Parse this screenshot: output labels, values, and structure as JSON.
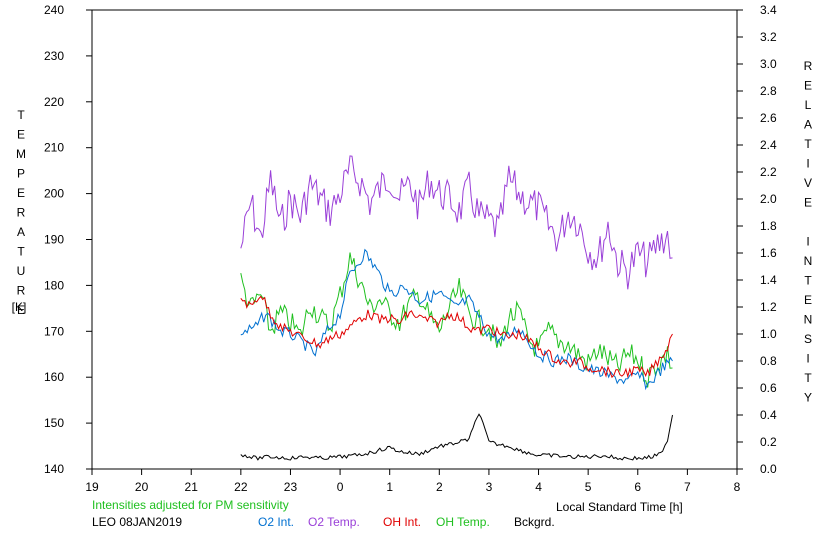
{
  "chart_data": {
    "type": "line",
    "xlabel": "Local Standard Time [h]",
    "ylabel_left": "TEMPERATURE",
    "ylabel_left_unit": "[K]",
    "ylabel_right": "RELATIVE INTENSITY",
    "x_ticks": [
      "19",
      "20",
      "21",
      "22",
      "23",
      "0",
      "1",
      "2",
      "3",
      "4",
      "5",
      "6",
      "7",
      "8"
    ],
    "y_left_ticks": [
      "140",
      "150",
      "160",
      "170",
      "180",
      "190",
      "200",
      "210",
      "220",
      "230",
      "240"
    ],
    "y_right_ticks": [
      "0.0",
      "0.2",
      "0.4",
      "0.6",
      "0.8",
      "1.0",
      "1.2",
      "1.4",
      "1.6",
      "1.8",
      "2.0",
      "2.2",
      "2.4",
      "2.6",
      "2.8",
      "3.0",
      "3.2",
      "3.4"
    ],
    "xlim": [
      19,
      32
    ],
    "ylim_left": [
      140,
      240
    ],
    "ylim_right": [
      0.0,
      3.4
    ],
    "note": "Intensities adjusted for PM sensitivity",
    "station": "LEO 08JAN2019",
    "legend": [
      "O2 Int.",
      "O2 Temp.",
      "OH Int.",
      "OH Temp.",
      "Bckgrd."
    ],
    "series": [
      {
        "name": "O2 Int.",
        "axis": "right",
        "color": "#0070d0",
        "x": [
          22.0,
          22.3,
          22.5,
          22.8,
          23.0,
          23.3,
          23.5,
          23.7,
          24.0,
          24.2,
          24.5,
          24.7,
          25.0,
          25.3,
          25.6,
          26.0,
          26.3,
          26.6,
          27.0,
          27.3,
          27.6,
          28.0,
          28.3,
          28.6,
          28.9,
          29.2,
          29.5,
          29.8,
          30.0,
          30.2,
          30.5,
          30.7
        ],
        "y": [
          1.0,
          1.05,
          1.15,
          1.02,
          1.0,
          0.92,
          0.85,
          1.0,
          1.15,
          1.45,
          1.6,
          1.5,
          1.3,
          1.35,
          1.25,
          1.3,
          1.2,
          1.25,
          1.0,
          0.95,
          1.05,
          0.85,
          0.8,
          0.82,
          0.75,
          0.72,
          0.68,
          0.65,
          0.7,
          0.62,
          0.75,
          0.8
        ]
      },
      {
        "name": "O2 Temp.",
        "axis": "left",
        "color": "#9a40d8",
        "x": [
          22.0,
          22.2,
          22.4,
          22.6,
          22.8,
          23.0,
          23.2,
          23.4,
          23.6,
          23.8,
          24.0,
          24.2,
          24.4,
          24.6,
          24.8,
          25.0,
          25.2,
          25.4,
          25.6,
          25.8,
          26.0,
          26.2,
          26.4,
          26.6,
          26.8,
          27.0,
          27.2,
          27.4,
          27.6,
          27.8,
          28.0,
          28.2,
          28.4,
          28.6,
          28.8,
          29.0,
          29.2,
          29.4,
          29.6,
          29.8,
          30.0,
          30.2,
          30.4,
          30.6,
          30.7
        ],
        "y": [
          188,
          198,
          190,
          203,
          193,
          199,
          195,
          202,
          199,
          196,
          200,
          205,
          203,
          198,
          201,
          204,
          199,
          202,
          197,
          203,
          200,
          199,
          196,
          201,
          195,
          194,
          192,
          203,
          200,
          198,
          197,
          193,
          190,
          196,
          194,
          188,
          186,
          193,
          185,
          183,
          187,
          185,
          189,
          191,
          186
        ]
      },
      {
        "name": "OH Int.",
        "axis": "right",
        "color": "#e00000",
        "x": [
          22.0,
          22.2,
          22.4,
          22.6,
          22.8,
          23.0,
          23.2,
          23.4,
          23.6,
          23.8,
          24.0,
          24.2,
          24.4,
          24.6,
          24.8,
          25.0,
          25.2,
          25.4,
          25.6,
          25.8,
          26.0,
          26.2,
          26.4,
          26.6,
          26.8,
          27.0,
          27.2,
          27.4,
          27.6,
          27.8,
          28.0,
          28.2,
          28.4,
          28.6,
          28.8,
          29.0,
          29.2,
          29.4,
          29.6,
          29.8,
          30.0,
          30.2,
          30.4,
          30.6,
          30.7
        ],
        "y": [
          1.27,
          1.2,
          1.3,
          1.15,
          1.05,
          1.02,
          0.98,
          0.95,
          0.92,
          0.97,
          1.0,
          1.05,
          1.12,
          1.15,
          1.1,
          1.12,
          1.08,
          1.16,
          1.12,
          1.1,
          1.08,
          1.15,
          1.12,
          1.05,
          1.02,
          1.05,
          1.0,
          0.98,
          1.0,
          0.95,
          0.9,
          0.85,
          0.8,
          0.78,
          0.8,
          0.75,
          0.75,
          0.72,
          0.7,
          0.72,
          0.73,
          0.7,
          0.8,
          0.9,
          1.0
        ]
      },
      {
        "name": "OH Temp.",
        "axis": "left",
        "color": "#20c020",
        "x": [
          22.0,
          22.2,
          22.4,
          22.6,
          22.8,
          23.0,
          23.2,
          23.4,
          23.6,
          23.8,
          24.0,
          24.2,
          24.4,
          24.6,
          24.8,
          25.0,
          25.2,
          25.4,
          25.6,
          25.8,
          26.0,
          26.2,
          26.4,
          26.6,
          26.8,
          27.0,
          27.2,
          27.4,
          27.6,
          27.8,
          28.0,
          28.2,
          28.4,
          28.6,
          28.8,
          29.0,
          29.2,
          29.4,
          29.6,
          29.8,
          30.0,
          30.2,
          30.4,
          30.6,
          30.7
        ],
        "y": [
          181,
          175,
          178,
          170,
          174,
          172,
          169,
          176,
          173,
          171,
          178,
          186,
          181,
          175,
          177,
          174,
          172,
          176,
          178,
          173,
          170,
          175,
          179,
          174,
          172,
          171,
          166,
          173,
          174,
          168,
          166,
          170,
          168,
          167,
          165,
          163,
          166,
          164,
          162,
          165,
          164,
          160,
          163,
          165,
          162
        ]
      },
      {
        "name": "Bckgrd.",
        "axis": "right",
        "color": "#000000",
        "x": [
          22.0,
          22.3,
          22.6,
          23.0,
          23.3,
          23.6,
          24.0,
          24.3,
          24.6,
          24.8,
          25.0,
          25.2,
          25.4,
          25.6,
          25.8,
          26.0,
          26.2,
          26.4,
          26.6,
          26.8,
          27.0,
          27.2,
          27.4,
          27.6,
          27.8,
          28.0,
          28.3,
          28.6,
          29.0,
          29.3,
          29.6,
          29.9,
          30.1,
          30.3,
          30.5,
          30.6,
          30.7
        ],
        "y": [
          0.11,
          0.08,
          0.09,
          0.08,
          0.09,
          0.08,
          0.09,
          0.1,
          0.12,
          0.14,
          0.16,
          0.13,
          0.12,
          0.11,
          0.14,
          0.17,
          0.18,
          0.2,
          0.22,
          0.42,
          0.2,
          0.18,
          0.17,
          0.14,
          0.12,
          0.1,
          0.1,
          0.09,
          0.09,
          0.1,
          0.08,
          0.08,
          0.08,
          0.09,
          0.12,
          0.22,
          0.4
        ]
      }
    ]
  }
}
